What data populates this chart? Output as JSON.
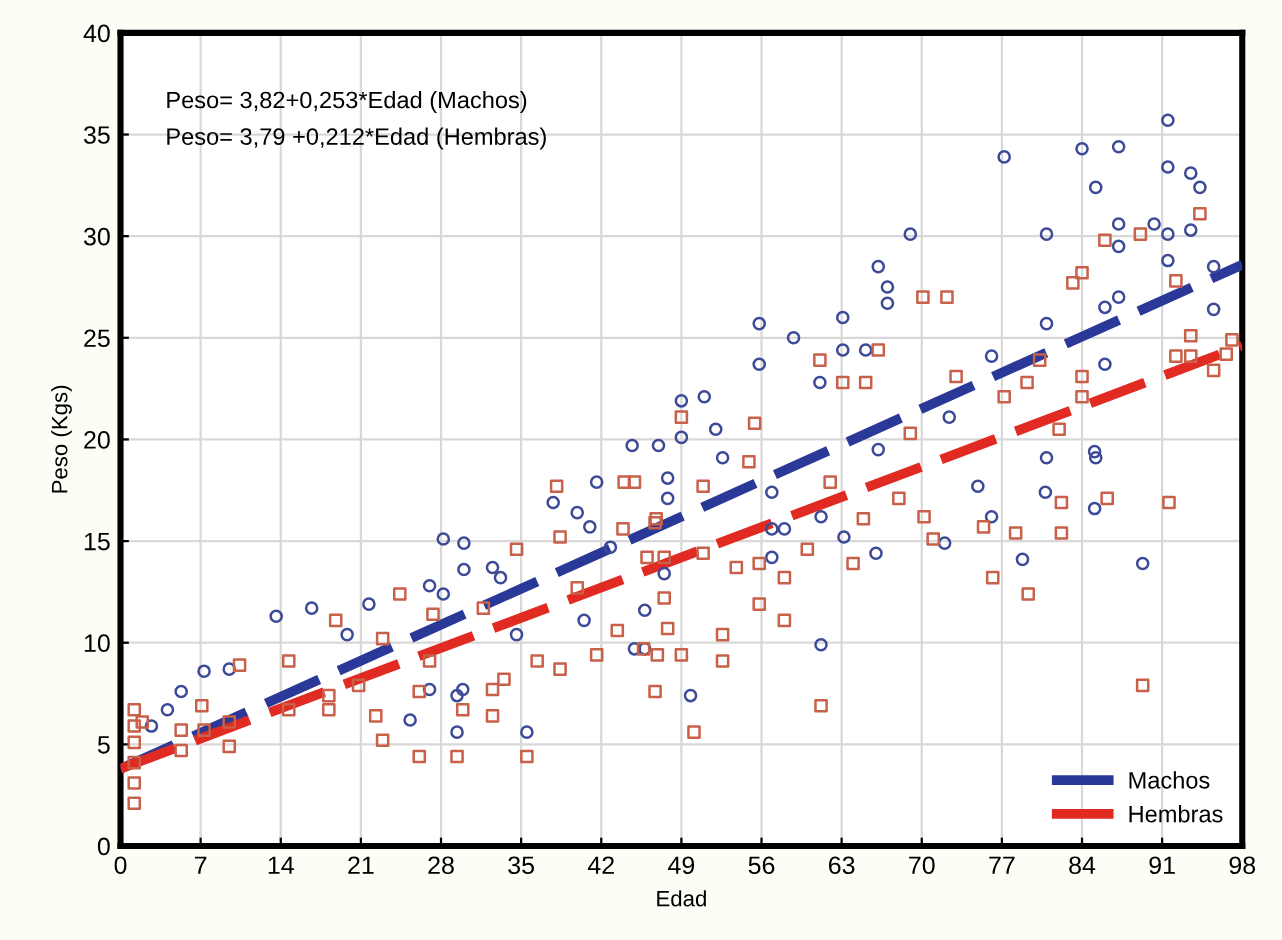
{
  "chart_data": {
    "type": "scatter",
    "xlabel": "Edad",
    "ylabel": "Peso (Kgs)",
    "xlim": [
      0,
      98
    ],
    "ylim": [
      0,
      40
    ],
    "xticks": [
      0,
      7,
      14,
      21,
      28,
      35,
      42,
      49,
      56,
      63,
      70,
      77,
      84,
      91,
      98
    ],
    "yticks": [
      0,
      5,
      10,
      15,
      20,
      25,
      30,
      35,
      40
    ],
    "grid": true,
    "legend": "bottom right",
    "annotations": [
      "Peso= 3,82+0,253*Edad (Machos)",
      "Peso= 3,79 +0,212*Edad (Hembras)"
    ],
    "series": [
      {
        "marker": "circle",
        "color": "#3c4a98",
        "x": [
          2.7,
          4.1,
          5.3,
          7.3,
          9.5,
          13.6,
          16.7,
          19.8,
          21.7,
          27,
          28.2,
          28.2,
          30,
          30,
          29.9,
          29.4,
          27,
          32.5,
          33.2,
          35.5,
          34.6,
          37.8,
          39.9,
          41,
          41.6,
          40.5,
          42.8,
          44.9,
          47,
          29.4,
          25.3,
          44.7,
          47.8,
          47.8,
          47.5,
          45.8,
          45.8,
          49.8,
          52.6,
          56.9,
          56.9,
          58,
          56.9,
          61.2,
          61.2,
          63.2,
          66,
          72,
          74.9,
          76.1,
          78.8,
          80.8,
          85.1,
          85.1,
          89.3,
          49,
          51,
          49,
          52,
          55.8,
          55.8,
          58.8,
          61.1,
          63.1,
          63.1,
          65.1,
          66.2,
          67,
          67,
          69,
          76.1,
          77.2,
          80.9,
          80.9,
          84,
          85.2,
          87.2,
          87.2,
          87.2,
          87.2,
          86,
          86,
          90.3,
          91.5,
          91.5,
          91.5,
          91.5,
          93.5,
          93.5,
          94.3,
          95.5,
          95.5,
          80.9,
          85.2,
          72.4,
          66.2
        ],
        "values": [
          5.9,
          6.7,
          7.6,
          8.6,
          8.7,
          11.3,
          11.7,
          10.4,
          11.9,
          12.8,
          12.4,
          15.1,
          14.9,
          13.6,
          7.7,
          5.6,
          7.7,
          13.7,
          13.2,
          5.6,
          10.4,
          16.9,
          16.4,
          15.7,
          17.9,
          11.1,
          14.7,
          9.7,
          19.7,
          7.4,
          6.2,
          19.7,
          18.1,
          17.1,
          13.4,
          11.6,
          9.7,
          7.4,
          19.1,
          17.4,
          15.6,
          15.6,
          14.2,
          16.2,
          9.9,
          15.2,
          14.4,
          14.9,
          17.7,
          16.2,
          14.1,
          17.4,
          19.4,
          16.6,
          13.9,
          21.9,
          22.1,
          20.1,
          20.5,
          25.7,
          23.7,
          25,
          22.8,
          26,
          24.4,
          24.4,
          28.5,
          27.5,
          26.7,
          30.1,
          24.1,
          33.9,
          30.1,
          25.7,
          34.3,
          32.4,
          34.4,
          30.6,
          29.5,
          27,
          26.5,
          23.7,
          30.6,
          35.7,
          33.4,
          30.1,
          28.8,
          33.1,
          30.3,
          32.4,
          28.5,
          26.4,
          19.1,
          19.1,
          21.1,
          19.5
        ]
      },
      {
        "marker": "square",
        "color": "#c8604a",
        "x": [
          1.2,
          1.2,
          1.2,
          1.2,
          1.2,
          1.2,
          1.9,
          5.3,
          5.3,
          7.3,
          9.5,
          9.5,
          7.1,
          10.4,
          14.7,
          14.7,
          18.2,
          18.2,
          18.8,
          20.8,
          22.3,
          22.9,
          22.9,
          24.4,
          26.1,
          26.1,
          27.3,
          27,
          29.4,
          29.9,
          31.7,
          32.5,
          32.5,
          33.5,
          34.6,
          35.5,
          36.4,
          38.1,
          38.4,
          38.4,
          39.9,
          41.6,
          43.4,
          43.9,
          45.7,
          46,
          44.9,
          46.8,
          44,
          46.7,
          47.5,
          47.5,
          47.8,
          46.9,
          49,
          46.7,
          50.1,
          50.9,
          50.9,
          52.6,
          52.6,
          54.9,
          53.8,
          55.8,
          55.8,
          58,
          58,
          60,
          62,
          61.2,
          64,
          64.9,
          68,
          70.2,
          71,
          75.4,
          76.2,
          78.2,
          79.3,
          82.2,
          82.2,
          86.2,
          91.6,
          89.3,
          49,
          55.4,
          61.1,
          63.1,
          65.1,
          66.2,
          69,
          70.1,
          72.2,
          73,
          77.2,
          79.2,
          80.3,
          82,
          83.2,
          84,
          84,
          84,
          86,
          89.1,
          92.2,
          92.2,
          93.5,
          93.5,
          94.3,
          95.5,
          96.6,
          97.1
        ],
        "values": [
          2.1,
          3.1,
          4.1,
          5.1,
          5.9,
          6.7,
          6.1,
          5.7,
          4.7,
          5.7,
          4.9,
          6.1,
          6.9,
          8.9,
          9.1,
          6.7,
          7.4,
          6.7,
          11.1,
          7.9,
          6.4,
          5.2,
          10.2,
          12.4,
          4.4,
          7.6,
          11.4,
          9.1,
          4.4,
          6.7,
          11.7,
          6.4,
          7.7,
          8.2,
          14.6,
          4.4,
          9.1,
          17.7,
          15.2,
          8.7,
          12.7,
          9.4,
          10.6,
          15.6,
          9.7,
          14.2,
          17.9,
          16.1,
          17.9,
          15.9,
          14.2,
          12.2,
          10.7,
          9.4,
          9.4,
          7.6,
          5.6,
          17.7,
          14.4,
          10.4,
          9.1,
          18.9,
          13.7,
          13.9,
          11.9,
          13.2,
          11.1,
          14.6,
          17.9,
          6.9,
          13.9,
          16.1,
          17.1,
          16.2,
          15.1,
          15.7,
          13.2,
          15.4,
          12.4,
          16.9,
          15.4,
          17.1,
          16.9,
          7.9,
          21.1,
          20.8,
          23.9,
          22.8,
          22.8,
          24.4,
          20.3,
          27,
          27,
          23.1,
          22.1,
          22.8,
          23.9,
          20.5,
          27.7,
          28.2,
          23.1,
          22.1,
          29.8,
          30.1,
          27.8,
          24.1,
          24.1,
          25.1,
          31.1,
          23.4,
          24.2,
          24.9
        ]
      },
      {
        "type": "line",
        "name": "Machos",
        "color": "#2a3898",
        "line_style": "dashed",
        "x": [
          0,
          98
        ],
        "values": [
          3.8,
          28.6
        ]
      },
      {
        "type": "line",
        "name": "Hembras",
        "color": "#e02a22",
        "line_style": "dashed",
        "x": [
          0,
          98
        ],
        "values": [
          3.8,
          24.6
        ]
      }
    ]
  }
}
